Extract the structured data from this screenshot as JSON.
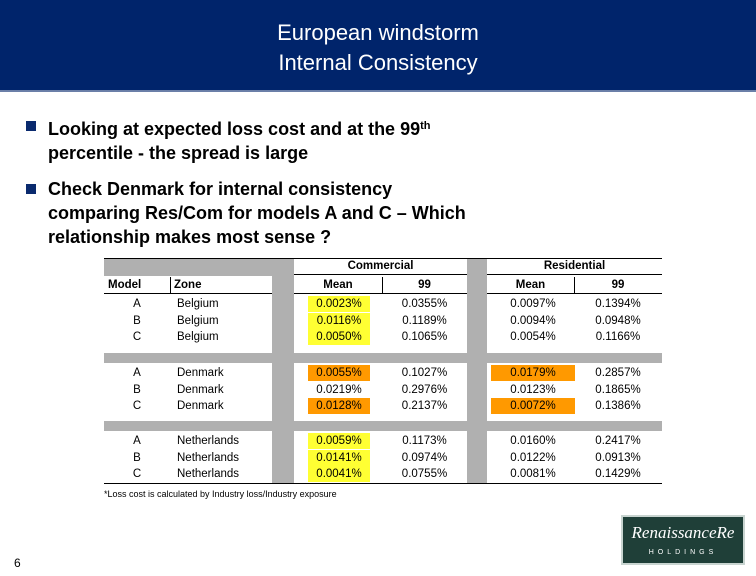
{
  "header": {
    "title_line1": "European windstorm",
    "title_line2": "Internal Consistency"
  },
  "bullets": [
    {
      "line1": "Looking at expected loss cost and at the 99",
      "sup": "th",
      "line2": "percentile - the spread is large"
    },
    {
      "line1": "Check Denmark for internal consistency",
      "line2": "comparing Res/Com for models A and C – Which",
      "line3": "relationship makes most sense ?"
    }
  ],
  "table": {
    "group_headers": {
      "commercial": "Commercial",
      "residential": "Residential"
    },
    "columns": {
      "model": "Model",
      "zone": "Zone",
      "com_mean": "Mean",
      "com_99": "99",
      "res_mean": "Mean",
      "res_99": "99"
    },
    "groups": [
      {
        "rows": [
          {
            "model": "A",
            "zone": "Belgium",
            "com_mean": "0.0023%",
            "com_99": "0.0355%",
            "res_mean": "0.0097%",
            "res_99": "0.1394%",
            "com_mean_hl": "yellow",
            "res_mean_hl": ""
          },
          {
            "model": "B",
            "zone": "Belgium",
            "com_mean": "0.0116%",
            "com_99": "0.1189%",
            "res_mean": "0.0094%",
            "res_99": "0.0948%",
            "com_mean_hl": "yellow",
            "res_mean_hl": ""
          },
          {
            "model": "C",
            "zone": "Belgium",
            "com_mean": "0.0050%",
            "com_99": "0.1065%",
            "res_mean": "0.0054%",
            "res_99": "0.1166%",
            "com_mean_hl": "yellow",
            "res_mean_hl": ""
          }
        ]
      },
      {
        "rows": [
          {
            "model": "A",
            "zone": "Denmark",
            "com_mean": "0.0055%",
            "com_99": "0.1027%",
            "res_mean": "0.0179%",
            "res_99": "0.2857%",
            "com_mean_hl": "orange",
            "res_mean_hl": "orange"
          },
          {
            "model": "B",
            "zone": "Denmark",
            "com_mean": "0.0219%",
            "com_99": "0.2976%",
            "res_mean": "0.0123%",
            "res_99": "0.1865%",
            "com_mean_hl": "",
            "res_mean_hl": ""
          },
          {
            "model": "C",
            "zone": "Denmark",
            "com_mean": "0.0128%",
            "com_99": "0.2137%",
            "res_mean": "0.0072%",
            "res_99": "0.1386%",
            "com_mean_hl": "orange",
            "res_mean_hl": "orange"
          }
        ]
      },
      {
        "rows": [
          {
            "model": "A",
            "zone": "Netherlands",
            "com_mean": "0.0059%",
            "com_99": "0.1173%",
            "res_mean": "0.0160%",
            "res_99": "0.2417%",
            "com_mean_hl": "yellow",
            "res_mean_hl": ""
          },
          {
            "model": "B",
            "zone": "Netherlands",
            "com_mean": "0.0141%",
            "com_99": "0.0974%",
            "res_mean": "0.0122%",
            "res_99": "0.0913%",
            "com_mean_hl": "yellow",
            "res_mean_hl": ""
          },
          {
            "model": "C",
            "zone": "Netherlands",
            "com_mean": "0.0041%",
            "com_99": "0.0755%",
            "res_mean": "0.0081%",
            "res_99": "0.1429%",
            "com_mean_hl": "yellow",
            "res_mean_hl": ""
          }
        ]
      }
    ],
    "highlight_colors": {
      "yellow": "#ffff33",
      "orange": "#ff9900"
    }
  },
  "footnote": "*Loss cost is calculated by Industry loss/Industry exposure",
  "page_number": "6",
  "logo": {
    "line1": "RenaissanceRe",
    "line2": "HOLDINGS"
  },
  "colors": {
    "header_bg": "#00246b",
    "bullet": "#0a2a6e",
    "logo_bg": "#1f3f38"
  }
}
